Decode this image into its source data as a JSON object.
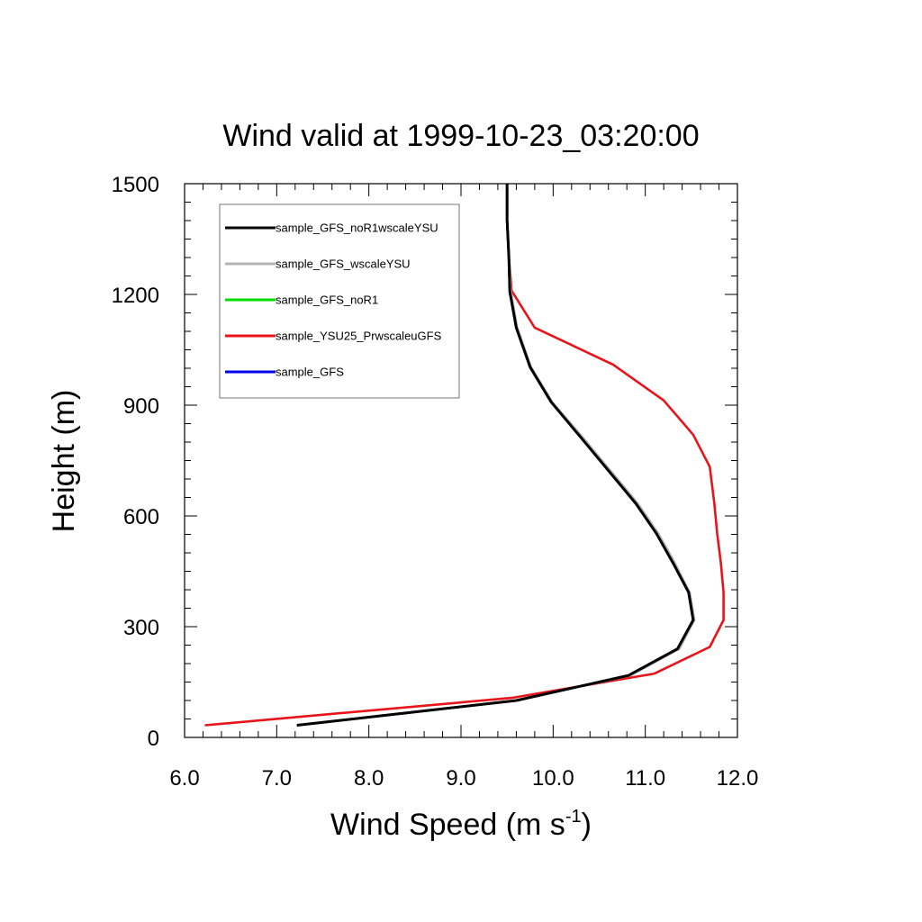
{
  "chart_data": {
    "type": "line",
    "title": "Wind valid at 1999-10-23_03:20:00",
    "xlabel_main": "Wind Speed (m s",
    "xlabel_sup": "-1",
    "xlabel_close": ")",
    "ylabel": "Height (m)",
    "xlim": [
      6.0,
      12.0
    ],
    "ylim": [
      0,
      1500
    ],
    "x_ticks": [
      "6.0",
      "7.0",
      "8.0",
      "9.0",
      "10.0",
      "11.0",
      "12.0"
    ],
    "x_tick_values": [
      6,
      7,
      8,
      9,
      10,
      11,
      12
    ],
    "y_ticks": [
      "0",
      "300",
      "600",
      "900",
      "1200",
      "1500"
    ],
    "y_tick_values": [
      0,
      300,
      600,
      900,
      1200,
      1500
    ],
    "legend_position": "top-left",
    "series": [
      {
        "name": "sample_GFS_noR1wscaleYSU",
        "color": "#000000",
        "points": [
          [
            7.22,
            33
          ],
          [
            9.6,
            100
          ],
          [
            10.82,
            168
          ],
          [
            11.35,
            240
          ],
          [
            11.52,
            318
          ],
          [
            11.47,
            393
          ],
          [
            11.3,
            473
          ],
          [
            11.12,
            553
          ],
          [
            10.9,
            633
          ],
          [
            10.3,
            813
          ],
          [
            9.98,
            908
          ],
          [
            9.75,
            1003
          ],
          [
            9.6,
            1110
          ],
          [
            9.53,
            1208
          ],
          [
            9.52,
            1300
          ],
          [
            9.5,
            1400
          ],
          [
            9.5,
            1500
          ]
        ]
      },
      {
        "name": "sample_GFS_wscaleYSU",
        "color": "#b4b4b4",
        "points": [
          [
            7.22,
            33
          ],
          [
            9.6,
            100
          ],
          [
            10.84,
            168
          ],
          [
            11.37,
            240
          ],
          [
            11.53,
            318
          ],
          [
            11.48,
            393
          ],
          [
            11.32,
            473
          ],
          [
            11.14,
            553
          ],
          [
            10.92,
            633
          ],
          [
            10.32,
            813
          ],
          [
            9.99,
            908
          ],
          [
            9.76,
            1003
          ],
          [
            9.61,
            1110
          ],
          [
            9.54,
            1208
          ],
          [
            9.52,
            1300
          ],
          [
            9.5,
            1400
          ],
          [
            9.5,
            1500
          ]
        ]
      },
      {
        "name": "sample_GFS_noR1",
        "color": "#00dd00",
        "points": [
          [
            7.22,
            33
          ],
          [
            9.6,
            100
          ],
          [
            10.83,
            168
          ],
          [
            11.36,
            240
          ],
          [
            11.52,
            318
          ],
          [
            11.47,
            393
          ],
          [
            11.31,
            473
          ],
          [
            11.13,
            553
          ],
          [
            10.91,
            633
          ],
          [
            10.31,
            813
          ],
          [
            9.98,
            908
          ],
          [
            9.75,
            1003
          ],
          [
            9.6,
            1110
          ],
          [
            9.53,
            1208
          ],
          [
            9.52,
            1300
          ],
          [
            9.5,
            1400
          ],
          [
            9.5,
            1500
          ]
        ]
      },
      {
        "name": "sample_YSU25_PrwscaleuGFS",
        "color": "#e8141a",
        "points": [
          [
            6.22,
            33
          ],
          [
            9.55,
            107
          ],
          [
            11.1,
            173
          ],
          [
            11.7,
            245
          ],
          [
            11.85,
            318
          ],
          [
            11.85,
            393
          ],
          [
            11.82,
            473
          ],
          [
            11.78,
            553
          ],
          [
            11.75,
            633
          ],
          [
            11.7,
            733
          ],
          [
            11.52,
            820
          ],
          [
            11.2,
            913
          ],
          [
            10.65,
            1010
          ],
          [
            9.8,
            1110
          ],
          [
            9.55,
            1210
          ],
          [
            9.52,
            1300
          ],
          [
            9.5,
            1400
          ],
          [
            9.5,
            1500
          ]
        ]
      },
      {
        "name": "sample_GFS",
        "color": "#0000e6",
        "points": [
          [
            7.22,
            33
          ],
          [
            9.6,
            100
          ],
          [
            10.83,
            168
          ],
          [
            11.36,
            240
          ],
          [
            11.53,
            318
          ],
          [
            11.48,
            393
          ],
          [
            11.31,
            473
          ],
          [
            11.13,
            553
          ],
          [
            10.91,
            633
          ],
          [
            10.31,
            813
          ],
          [
            9.98,
            908
          ],
          [
            9.75,
            1003
          ],
          [
            9.6,
            1110
          ],
          [
            9.53,
            1208
          ],
          [
            9.52,
            1300
          ],
          [
            9.5,
            1400
          ],
          [
            9.5,
            1500
          ]
        ]
      }
    ]
  }
}
